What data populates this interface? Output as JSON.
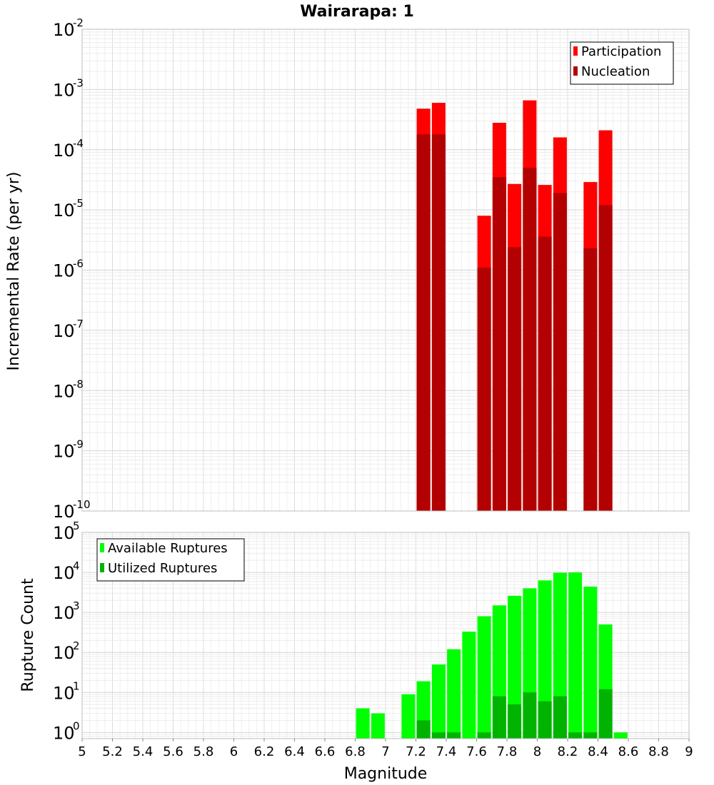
{
  "colors": {
    "participation": "#ff0000",
    "nucleation": "#b30000",
    "available": "#00ff00",
    "utilized": "#00b300"
  },
  "chart_data": [
    {
      "type": "bar",
      "title": "Wairarapa: 1",
      "ylabel": "Incremental Rate (per yr)",
      "xlabel": "",
      "log_y": true,
      "xlim": [
        5,
        9
      ],
      "ylim": [
        1e-10,
        0.01
      ],
      "ytick_exponents": [
        "-2",
        "-3",
        "-4",
        "-5",
        "-6",
        "-7",
        "-8",
        "-9",
        "-10"
      ],
      "legend": {
        "placement": "top-right",
        "entries": [
          "Participation",
          "Nucleation"
        ]
      },
      "grid": true,
      "series": [
        {
          "name": "Participation",
          "x": [
            7.25,
            7.35,
            7.65,
            7.75,
            7.85,
            7.95,
            8.05,
            8.15,
            8.35,
            8.45
          ],
          "values": [
            0.00048,
            0.0006,
            8e-06,
            0.00028,
            2.7e-05,
            0.00066,
            2.6e-05,
            0.00016,
            2.9e-05,
            0.00021
          ]
        },
        {
          "name": "Nucleation",
          "x": [
            7.25,
            7.35,
            7.65,
            7.75,
            7.85,
            7.95,
            8.05,
            8.15,
            8.35,
            8.45
          ],
          "values": [
            0.00018,
            0.00018,
            1.1e-06,
            3.5e-05,
            2.4e-06,
            5e-05,
            3.6e-06,
            1.9e-05,
            2.3e-06,
            1.2e-05
          ]
        }
      ]
    },
    {
      "type": "bar",
      "title": "",
      "ylabel": "Rupture Count",
      "xlabel": "Magnitude",
      "log_y": true,
      "xlim": [
        5,
        9
      ],
      "ylim": [
        0.7,
        100000
      ],
      "ytick_exponents": [
        "5",
        "4",
        "3",
        "2",
        "1",
        "0"
      ],
      "xticks": [
        "5",
        "5.2",
        "5.4",
        "5.6",
        "5.8",
        "6",
        "6.2",
        "6.4",
        "6.6",
        "6.8",
        "7",
        "7.2",
        "7.4",
        "7.6",
        "7.8",
        "8",
        "8.2",
        "8.4",
        "8.6",
        "8.8",
        "9"
      ],
      "legend": {
        "placement": "top-left",
        "entries": [
          "Available Ruptures",
          "Utilized Ruptures"
        ]
      },
      "grid": true,
      "series": [
        {
          "name": "Available Ruptures",
          "x": [
            6.85,
            6.95,
            7.15,
            7.25,
            7.35,
            7.45,
            7.55,
            7.65,
            7.75,
            7.85,
            7.95,
            8.05,
            8.15,
            8.25,
            8.35,
            8.45,
            8.55
          ],
          "values": [
            4,
            3,
            9,
            19,
            50,
            120,
            330,
            800,
            1500,
            2600,
            4000,
            6300,
            9800,
            10000,
            4400,
            500,
            1
          ]
        },
        {
          "name": "Utilized Ruptures",
          "x": [
            7.25,
            7.35,
            7.45,
            7.65,
            7.75,
            7.85,
            7.95,
            8.05,
            8.15,
            8.25,
            8.35,
            8.45
          ],
          "values": [
            2,
            1,
            1,
            1,
            8,
            5,
            10,
            6,
            8,
            1,
            1,
            12
          ]
        }
      ]
    }
  ]
}
